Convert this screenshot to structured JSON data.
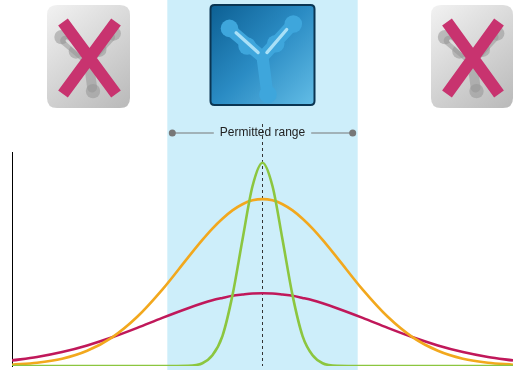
{
  "chart_data": {
    "type": "line",
    "x": [
      0,
      5,
      10,
      15,
      20,
      25,
      30,
      35,
      38,
      40,
      42,
      44,
      46,
      48,
      50,
      52,
      54,
      56,
      58,
      60,
      62,
      65,
      70,
      75,
      80,
      85,
      90,
      95,
      100
    ],
    "series": [
      {
        "color": "#8cc63f",
        "values": [
          0,
          0,
          0,
          0,
          0,
          0,
          0,
          0.1,
          1.3,
          5,
          14,
          33,
          59,
          84,
          95,
          84,
          59,
          33,
          14,
          5,
          1.3,
          0.1,
          0,
          0,
          0,
          0,
          0,
          0,
          0
        ]
      },
      {
        "color": "#f2a81d",
        "values": [
          0.6,
          1.5,
          3.4,
          7.1,
          13.4,
          23,
          35.7,
          50.3,
          58.9,
          64.2,
          68.8,
          72.7,
          75.6,
          77.4,
          78,
          77.4,
          75.6,
          72.7,
          68.8,
          64.2,
          58.9,
          50.3,
          35.7,
          23,
          13.4,
          7.1,
          3.4,
          1.5,
          0.6
        ]
      },
      {
        "color": "#c0185a",
        "values": [
          2.6,
          4.2,
          6.5,
          9.6,
          13.4,
          17.8,
          22.5,
          26.9,
          29.3,
          30.7,
          31.8,
          32.8,
          33.4,
          33.9,
          34,
          33.9,
          33.4,
          32.8,
          31.8,
          30.7,
          29.3,
          26.9,
          22.5,
          17.8,
          13.4,
          9.6,
          6.5,
          4.2,
          2.6
        ]
      }
    ],
    "xlim": [
      0,
      100
    ],
    "ylim": [
      0,
      100
    ],
    "tick_labels": false,
    "grid": false,
    "annotations": [
      {
        "type": "band",
        "x": [
          31,
          69
        ],
        "text": "Permitted range"
      },
      {
        "type": "vline",
        "x": 50,
        "line_style": "dashed"
      }
    ]
  }
}
